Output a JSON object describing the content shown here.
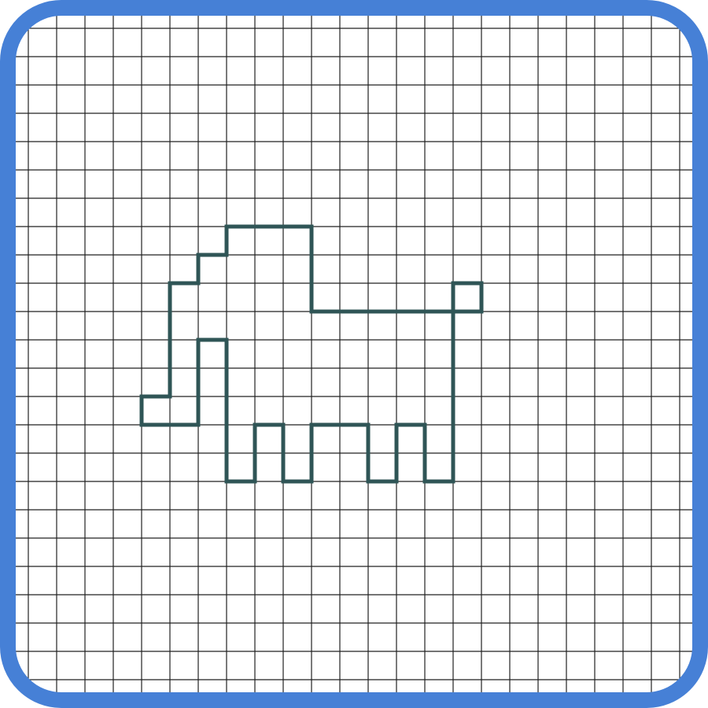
{
  "frame": {
    "border_color": "#4680D6",
    "background": "#ffffff"
  },
  "grid": {
    "columns": 24,
    "rows": 24,
    "line_color": "#222222"
  },
  "figure": {
    "name": "pixel-animal-outline",
    "stroke_color": "#2F5556",
    "outline_cells": [
      [
        8,
        8
      ],
      [
        11,
        8
      ],
      [
        11,
        11
      ],
      [
        16,
        11
      ],
      [
        16,
        10
      ],
      [
        17,
        10
      ],
      [
        17,
        11
      ],
      [
        16,
        11
      ],
      [
        16,
        17
      ],
      [
        15,
        17
      ],
      [
        15,
        15
      ],
      [
        14,
        15
      ],
      [
        14,
        17
      ],
      [
        13,
        17
      ],
      [
        13,
        15
      ],
      [
        11,
        15
      ],
      [
        11,
        17
      ],
      [
        10,
        17
      ],
      [
        10,
        15
      ],
      [
        9,
        15
      ],
      [
        9,
        17
      ],
      [
        8,
        17
      ],
      [
        8,
        12
      ],
      [
        7,
        12
      ],
      [
        7,
        15
      ],
      [
        5,
        15
      ],
      [
        5,
        14
      ],
      [
        6,
        14
      ],
      [
        6,
        10
      ],
      [
        7,
        10
      ],
      [
        7,
        9
      ],
      [
        8,
        9
      ],
      [
        8,
        8
      ]
    ]
  }
}
